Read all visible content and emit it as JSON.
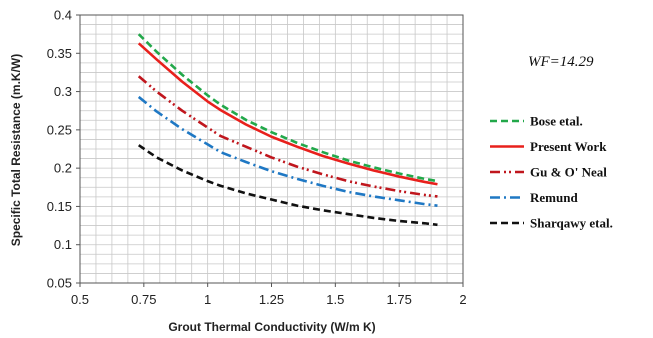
{
  "chart_data": {
    "type": "line",
    "title": "",
    "xlabel": "Grout Thermal Conductivity (W/m K)",
    "ylabel": "Specific Total Resistance (m.K/W)",
    "xlim": [
      0.5,
      2
    ],
    "ylim": [
      0.05,
      0.4
    ],
    "x_ticks": [
      "0.5",
      "0.75",
      "1",
      "1.25",
      "1.5",
      "1.75",
      "2"
    ],
    "y_ticks": [
      "0.05",
      "0.1",
      "0.15",
      "0.2",
      "0.25",
      "0.3",
      "0.35",
      "0.4"
    ],
    "grid": true,
    "legend_position": "right",
    "annotation": "WF=14.29",
    "x": [
      0.73,
      0.8,
      0.9,
      1.0,
      1.05,
      1.15,
      1.25,
      1.35,
      1.45,
      1.55,
      1.65,
      1.75,
      1.85,
      1.9
    ],
    "series": [
      {
        "name": "Bose etal.",
        "color": "#22a84a",
        "dash": "dashed",
        "values": [
          0.375,
          0.352,
          0.322,
          0.295,
          0.283,
          0.263,
          0.247,
          0.233,
          0.221,
          0.21,
          0.201,
          0.193,
          0.186,
          0.183
        ]
      },
      {
        "name": "Present Work",
        "color": "#e8201c",
        "dash": "solid",
        "values": [
          0.363,
          0.342,
          0.313,
          0.287,
          0.276,
          0.257,
          0.241,
          0.228,
          0.216,
          0.206,
          0.197,
          0.189,
          0.182,
          0.179
        ]
      },
      {
        "name": "Gu & O' Neal",
        "color": "#c0161d",
        "dash": "dash-dot-dot",
        "values": [
          0.32,
          0.3,
          0.275,
          0.253,
          0.242,
          0.228,
          0.214,
          0.202,
          0.192,
          0.183,
          0.176,
          0.17,
          0.165,
          0.163
        ]
      },
      {
        "name": "Remund",
        "color": "#1f78c4",
        "dash": "dash-dot",
        "values": [
          0.293,
          0.274,
          0.251,
          0.231,
          0.221,
          0.208,
          0.196,
          0.186,
          0.177,
          0.169,
          0.163,
          0.158,
          0.153,
          0.151
        ]
      },
      {
        "name": "Sharqawy etal.",
        "color": "#111111",
        "dash": "dashed",
        "values": [
          0.23,
          0.214,
          0.197,
          0.183,
          0.177,
          0.167,
          0.159,
          0.151,
          0.145,
          0.14,
          0.135,
          0.131,
          0.128,
          0.126
        ]
      }
    ]
  }
}
